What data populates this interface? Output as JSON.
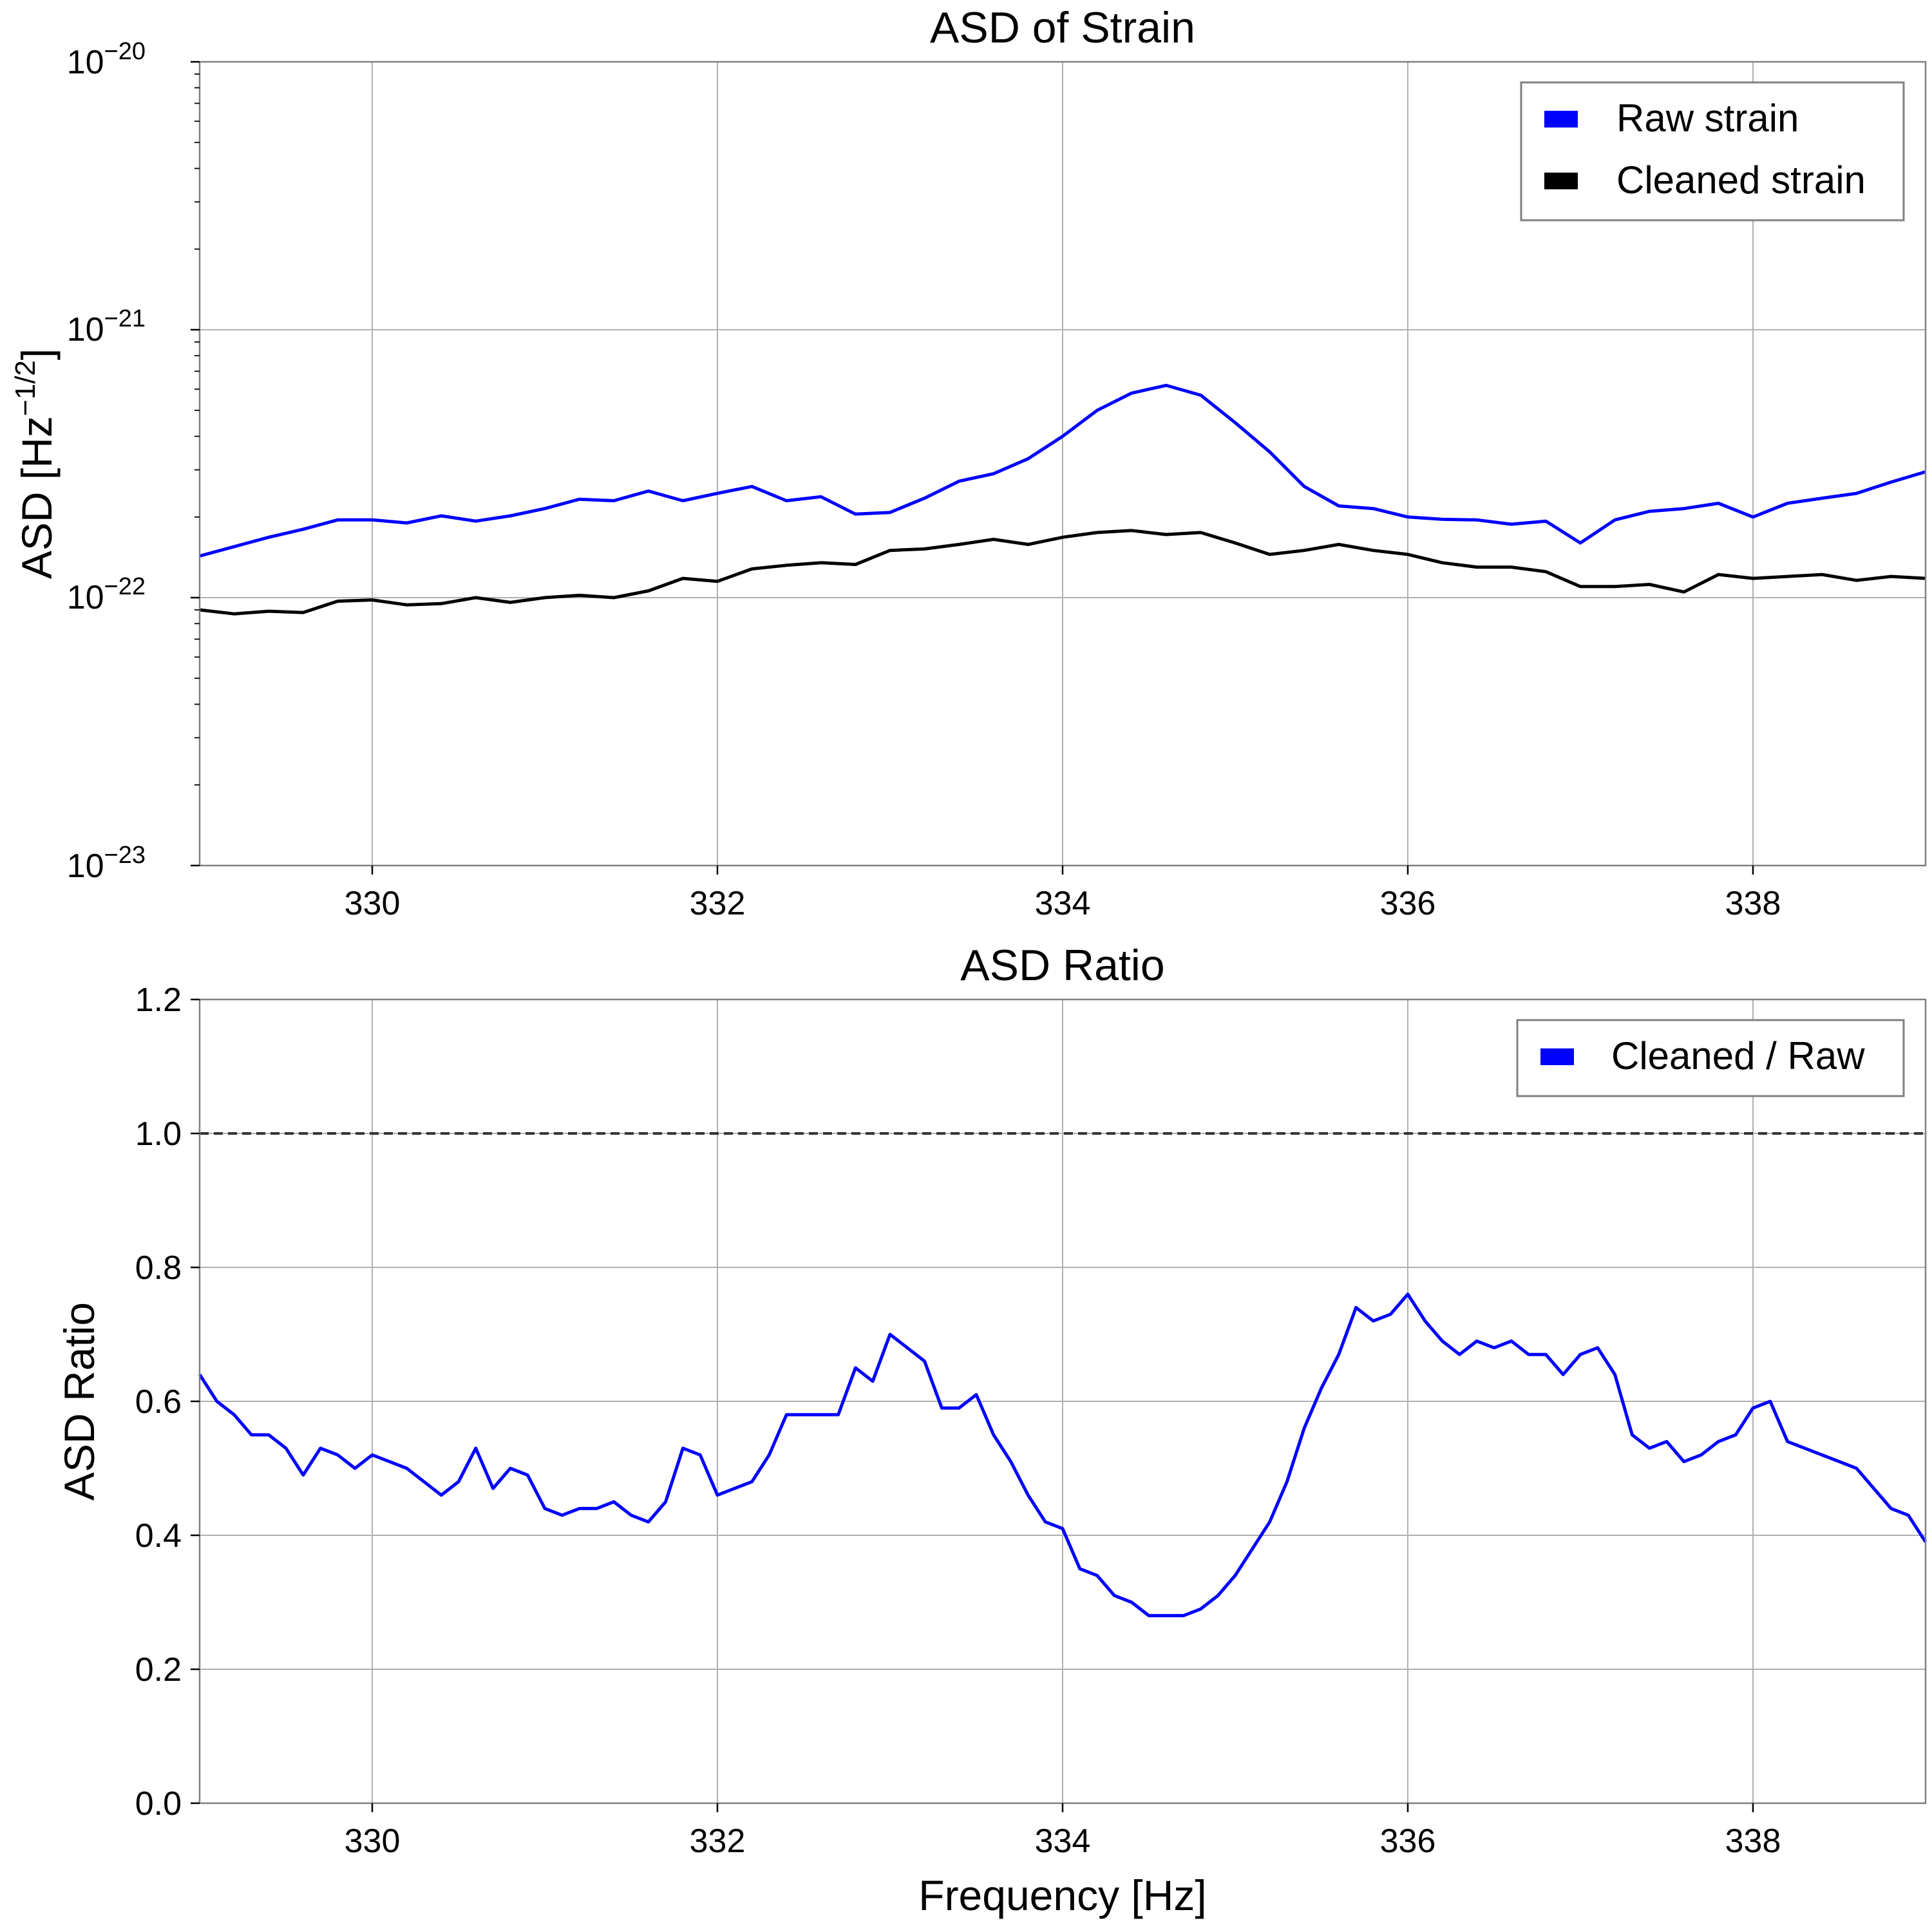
{
  "chart_data": [
    {
      "type": "line",
      "title": "ASD of Strain",
      "xlabel": "",
      "ylabel": "ASD [Hz",
      "ylabel_sup": "−1/2",
      "ylabel_close": "]",
      "yscale": "log",
      "xlim": [
        329,
        339
      ],
      "ylim": [
        1e-23,
        1e-20
      ],
      "xticks": [
        330,
        332,
        334,
        336,
        338
      ],
      "xtick_labels": [
        "330",
        "332",
        "334",
        "336",
        "338"
      ],
      "yticks": [
        1e-23,
        1e-22,
        1e-21,
        1e-20
      ],
      "ytick_base": [
        "10",
        "10",
        "10",
        "10"
      ],
      "ytick_exp": [
        "−23",
        "−22",
        "−21",
        "−20"
      ],
      "grid": true,
      "legend_position": "top-right",
      "series": [
        {
          "name": "Raw strain",
          "color": "#0000ff",
          "x": [
            329.0,
            329.2,
            329.4,
            329.6,
            329.8,
            330.0,
            330.2,
            330.4,
            330.6,
            330.8,
            331.0,
            331.2,
            331.4,
            331.6,
            331.8,
            332.0,
            332.2,
            332.4,
            332.6,
            332.8,
            333.0,
            333.2,
            333.4,
            333.6,
            333.8,
            334.0,
            334.2,
            334.4,
            334.6,
            334.8,
            335.0,
            335.2,
            335.4,
            335.6,
            335.8,
            336.0,
            336.2,
            336.4,
            336.6,
            336.8,
            337.0,
            337.2,
            337.4,
            337.6,
            337.8,
            338.0,
            338.2,
            338.4,
            338.6,
            338.8,
            339.0
          ],
          "y": [
            1.43e-22,
            1.55e-22,
            1.68e-22,
            1.8e-22,
            1.95e-22,
            1.95e-22,
            1.9e-22,
            2.02e-22,
            1.93e-22,
            2.02e-22,
            2.15e-22,
            2.33e-22,
            2.3e-22,
            2.5e-22,
            2.3e-22,
            2.45e-22,
            2.6e-22,
            2.3e-22,
            2.38e-22,
            2.05e-22,
            2.08e-22,
            2.35e-22,
            2.72e-22,
            2.9e-22,
            3.3e-22,
            4e-22,
            5e-22,
            5.8e-22,
            6.2e-22,
            5.7e-22,
            4.5e-22,
            3.5e-22,
            2.6e-22,
            2.2e-22,
            2.15e-22,
            2e-22,
            1.96e-22,
            1.95e-22,
            1.88e-22,
            1.93e-22,
            1.6e-22,
            1.95e-22,
            2.1e-22,
            2.15e-22,
            2.25e-22,
            2e-22,
            2.25e-22,
            2.35e-22,
            2.45e-22,
            2.7e-22,
            2.95e-22
          ]
        },
        {
          "name": "Cleaned strain",
          "color": "#000000",
          "x": [
            329.0,
            329.2,
            329.4,
            329.6,
            329.8,
            330.0,
            330.2,
            330.4,
            330.6,
            330.8,
            331.0,
            331.2,
            331.4,
            331.6,
            331.8,
            332.0,
            332.2,
            332.4,
            332.6,
            332.8,
            333.0,
            333.2,
            333.4,
            333.6,
            333.8,
            334.0,
            334.2,
            334.4,
            334.6,
            334.8,
            335.0,
            335.2,
            335.4,
            335.6,
            335.8,
            336.0,
            336.2,
            336.4,
            336.6,
            336.8,
            337.0,
            337.2,
            337.4,
            337.6,
            337.8,
            338.0,
            338.2,
            338.4,
            338.6,
            338.8,
            339.0
          ],
          "y": [
            9e-23,
            8.7e-23,
            8.9e-23,
            8.8e-23,
            9.7e-23,
            9.8e-23,
            9.4e-23,
            9.5e-23,
            1e-22,
            9.6e-23,
            1e-22,
            1.02e-22,
            1e-22,
            1.06e-22,
            1.18e-22,
            1.15e-22,
            1.28e-22,
            1.32e-22,
            1.35e-22,
            1.33e-22,
            1.5e-22,
            1.52e-22,
            1.58e-22,
            1.65e-22,
            1.58e-22,
            1.68e-22,
            1.75e-22,
            1.78e-22,
            1.72e-22,
            1.75e-22,
            1.6e-22,
            1.45e-22,
            1.5e-22,
            1.58e-22,
            1.5e-22,
            1.45e-22,
            1.35e-22,
            1.3e-22,
            1.3e-22,
            1.25e-22,
            1.1e-22,
            1.1e-22,
            1.12e-22,
            1.05e-22,
            1.22e-22,
            1.18e-22,
            1.2e-22,
            1.22e-22,
            1.16e-22,
            1.2e-22,
            1.18e-22
          ]
        }
      ]
    },
    {
      "type": "line",
      "title": "ASD Ratio",
      "xlabel": "Frequency [Hz]",
      "ylabel": "ASD Ratio",
      "yscale": "linear",
      "xlim": [
        329,
        339
      ],
      "ylim": [
        0.0,
        1.2
      ],
      "xticks": [
        330,
        332,
        334,
        336,
        338
      ],
      "xtick_labels": [
        "330",
        "332",
        "334",
        "336",
        "338"
      ],
      "yticks": [
        0.0,
        0.2,
        0.4,
        0.6,
        0.8,
        1.0,
        1.2
      ],
      "ytick_labels": [
        "0.0",
        "0.2",
        "0.4",
        "0.6",
        "0.8",
        "1.0",
        "1.2"
      ],
      "grid": true,
      "legend_position": "top-right",
      "reference_line": {
        "y": 1.0,
        "style": "dashed",
        "color": "#333333"
      },
      "series": [
        {
          "name": "Cleaned / Raw",
          "color": "#0000ff",
          "x": [
            329.0,
            329.1,
            329.2,
            329.3,
            329.4,
            329.5,
            329.6,
            329.7,
            329.8,
            329.9,
            330.0,
            330.1,
            330.2,
            330.3,
            330.4,
            330.5,
            330.6,
            330.7,
            330.8,
            330.9,
            331.0,
            331.1,
            331.2,
            331.3,
            331.4,
            331.5,
            331.6,
            331.7,
            331.8,
            331.9,
            332.0,
            332.1,
            332.2,
            332.3,
            332.4,
            332.5,
            332.6,
            332.7,
            332.8,
            332.9,
            333.0,
            333.1,
            333.2,
            333.3,
            333.4,
            333.5,
            333.6,
            333.7,
            333.8,
            333.9,
            334.0,
            334.1,
            334.2,
            334.3,
            334.4,
            334.5,
            334.6,
            334.7,
            334.8,
            334.9,
            335.0,
            335.1,
            335.2,
            335.3,
            335.4,
            335.5,
            335.6,
            335.7,
            335.8,
            335.9,
            336.0,
            336.1,
            336.2,
            336.3,
            336.4,
            336.5,
            336.6,
            336.7,
            336.8,
            336.9,
            337.0,
            337.1,
            337.2,
            337.3,
            337.4,
            337.5,
            337.6,
            337.7,
            337.8,
            337.9,
            338.0,
            338.1,
            338.2,
            338.3,
            338.4,
            338.5,
            338.6,
            338.7,
            338.8,
            338.9,
            339.0
          ],
          "y": [
            0.64,
            0.6,
            0.58,
            0.55,
            0.55,
            0.53,
            0.49,
            0.53,
            0.52,
            0.5,
            0.52,
            0.51,
            0.5,
            0.48,
            0.46,
            0.48,
            0.53,
            0.47,
            0.5,
            0.49,
            0.44,
            0.43,
            0.44,
            0.44,
            0.45,
            0.43,
            0.42,
            0.45,
            0.53,
            0.52,
            0.46,
            0.47,
            0.48,
            0.52,
            0.58,
            0.58,
            0.58,
            0.58,
            0.65,
            0.63,
            0.7,
            0.68,
            0.66,
            0.59,
            0.59,
            0.61,
            0.55,
            0.51,
            0.46,
            0.42,
            0.41,
            0.35,
            0.34,
            0.31,
            0.3,
            0.28,
            0.28,
            0.28,
            0.29,
            0.31,
            0.34,
            0.38,
            0.42,
            0.48,
            0.56,
            0.62,
            0.67,
            0.74,
            0.72,
            0.73,
            0.76,
            0.72,
            0.69,
            0.67,
            0.69,
            0.68,
            0.69,
            0.67,
            0.67,
            0.64,
            0.67,
            0.68,
            0.64,
            0.55,
            0.53,
            0.54,
            0.51,
            0.52,
            0.54,
            0.55,
            0.59,
            0.6,
            0.54,
            0.53,
            0.52,
            0.51,
            0.5,
            0.47,
            0.44,
            0.43,
            0.39
          ]
        }
      ]
    }
  ]
}
